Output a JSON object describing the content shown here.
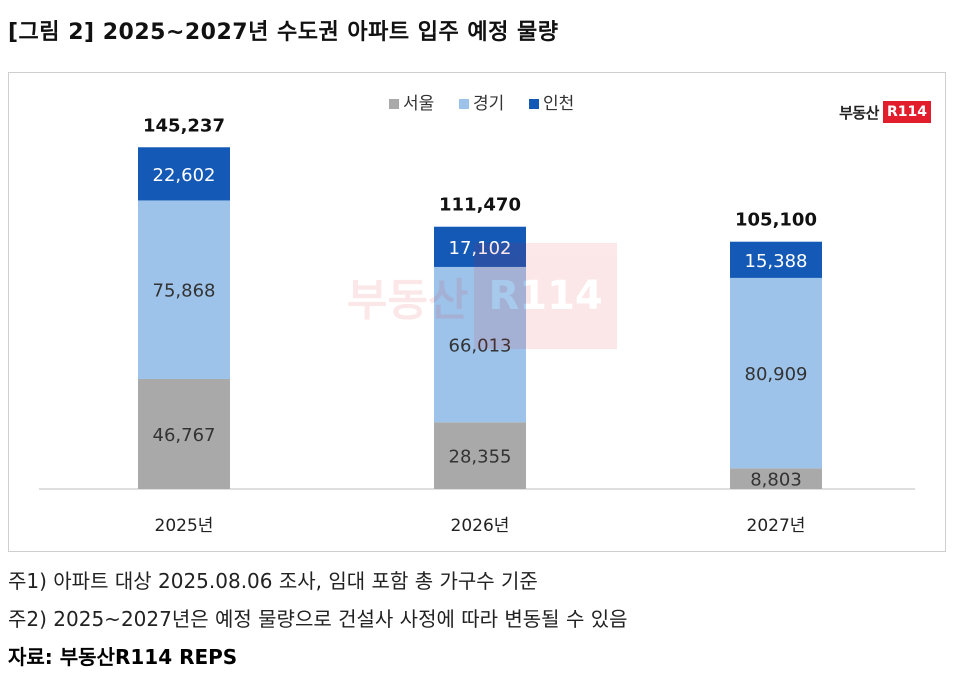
{
  "figure_title": "[그림 2] 2025~2027년 수도권 아파트 입주 예정 물량",
  "brand": {
    "text": "부동산",
    "box": "R114"
  },
  "notes": [
    "주1) 아파트 대상 2025.08.06 조사, 임대 포함 총 가구수 기준",
    "주2) 2025~2027년은 예정 물량으로 건설사 사정에 따라 변동될 수 있음"
  ],
  "source": "자료: 부동산R114 REPS",
  "colors": {
    "seoul": "#a9a9a9",
    "gyeonggi": "#9dc3ea",
    "incheon": "#1459b6"
  },
  "chart_data": {
    "type": "bar",
    "stacked": true,
    "categories": [
      "2025년",
      "2026년",
      "2027년"
    ],
    "series": [
      {
        "name": "서울",
        "values": [
          46767,
          28355,
          8803
        ],
        "value_labels": [
          "46,767",
          "28,355",
          "8,803"
        ],
        "color": "#a9a9a9",
        "label_color": "#333333"
      },
      {
        "name": "경기",
        "values": [
          75868,
          66013,
          80909
        ],
        "value_labels": [
          "75,868",
          "66,013",
          "80,909"
        ],
        "color": "#9dc3ea",
        "label_color": "#333333"
      },
      {
        "name": "인천",
        "values": [
          22602,
          17102,
          15388
        ],
        "value_labels": [
          "22,602",
          "17,102",
          "15,388"
        ],
        "color": "#1459b6",
        "label_color": "#ffffff"
      }
    ],
    "totals": [
      145237,
      111470,
      105100
    ],
    "total_labels": [
      "145,237",
      "111,470",
      "105,100"
    ],
    "ylim": [
      0,
      170000
    ],
    "legend": "top-center",
    "grid": false
  }
}
